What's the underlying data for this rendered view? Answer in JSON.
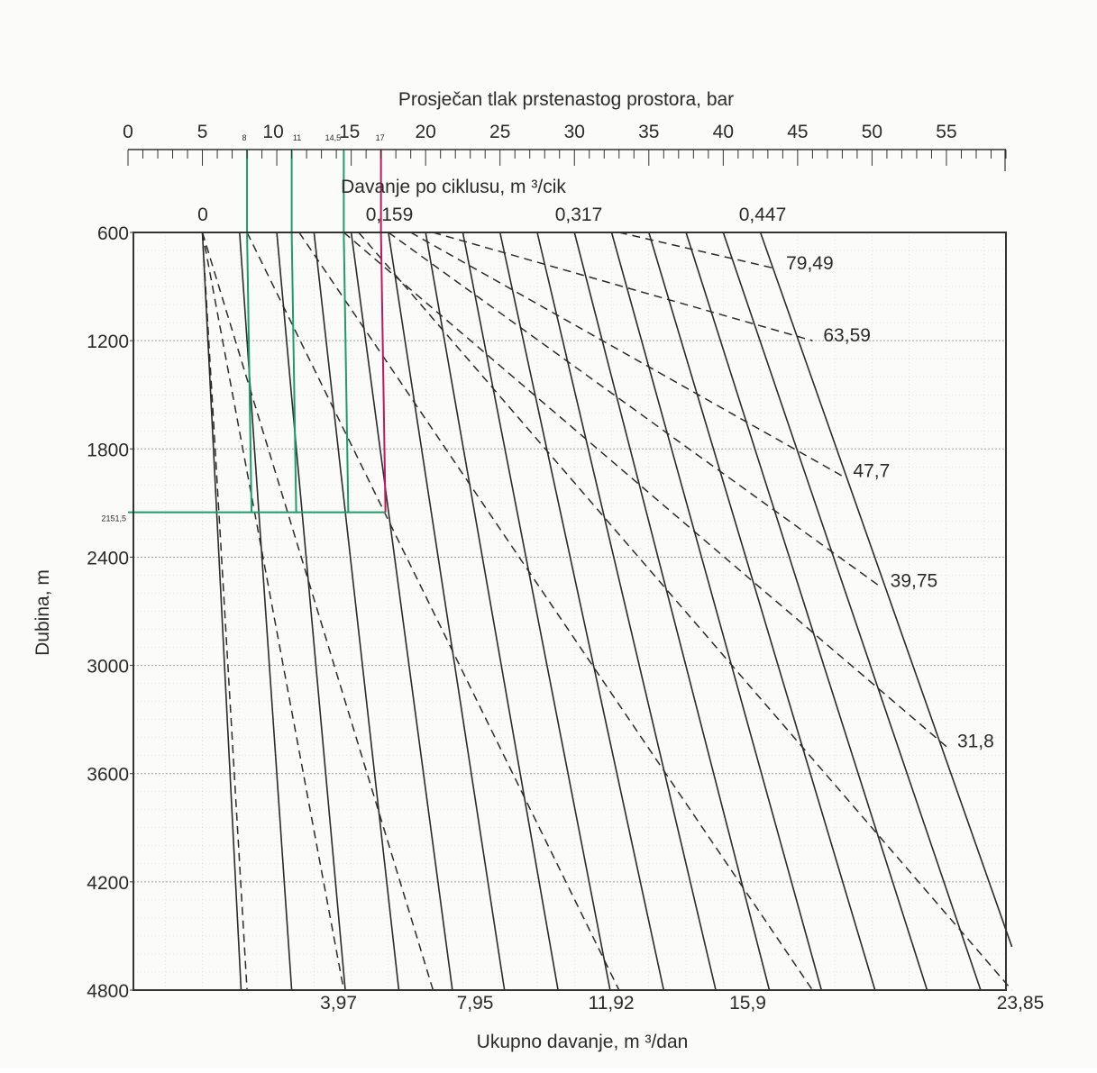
{
  "chart_data": {
    "type": "line",
    "title": "",
    "top_axis": {
      "label": "Prosječan tlak prstenastog prostora, bar",
      "range": [
        0,
        59
      ],
      "ticks": [
        "0",
        "5",
        "10",
        "15",
        "20",
        "25",
        "30",
        "35",
        "40",
        "45",
        "50",
        "55"
      ],
      "tick_values": [
        0,
        5,
        10,
        15,
        20,
        25,
        30,
        35,
        40,
        45,
        50,
        55
      ],
      "marked": [
        {
          "label": "8",
          "value": 8
        },
        {
          "label": "11",
          "value": 11
        },
        {
          "label": "14,5",
          "value": 14.5
        },
        {
          "label": "17",
          "value": 17
        }
      ]
    },
    "cycle_axis": {
      "label": "Davanje po ciklusu, m ³/cik",
      "ticks": [
        "0",
        "0,159",
        "0,317",
        "0,447"
      ],
      "tick_values": [
        0,
        0.159,
        0.317,
        0.447
      ]
    },
    "y_axis": {
      "label": "Dubina, m",
      "range": [
        600,
        4800
      ],
      "ticks": [
        "600",
        "1200",
        "1800",
        "2400",
        "3000",
        "3600",
        "4200",
        "4800"
      ],
      "tick_values": [
        600,
        1200,
        1800,
        2400,
        3000,
        3600,
        4200,
        4800
      ],
      "marked": {
        "label": "2151,5",
        "value": 2151.5
      }
    },
    "bottom_axis": {
      "label": "Ukupno davanje, m ³/dan",
      "range": [
        0,
        23.85
      ],
      "ticks": [
        "3,97",
        "7,95",
        "11,92",
        "15,9",
        "23,85"
      ],
      "tick_values": [
        3.97,
        7.95,
        11.92,
        15.9,
        23.85
      ]
    },
    "grid": true,
    "solid_lines": {
      "description_units": "pressure at top-axis scale (bar) at depth 600 m and depth 4800 m",
      "lines": [
        {
          "p600": 5,
          "p4800": 7.6
        },
        {
          "p600": 7.5,
          "p4800": 11
        },
        {
          "p600": 10,
          "p4800": 14.6
        },
        {
          "p600": 12.5,
          "p4800": 18.2
        },
        {
          "p600": 15,
          "p4800": 21.8
        },
        {
          "p600": 17.5,
          "p4800": 25.3
        },
        {
          "p600": 20,
          "p4800": 28.9
        },
        {
          "p600": 22.5,
          "p4800": 32.4
        },
        {
          "p600": 25,
          "p4800": 36
        },
        {
          "p600": 27.5,
          "p4800": 39.5
        },
        {
          "p600": 30,
          "p4800": 43.1
        },
        {
          "p600": 32.5,
          "p4800": 46.6
        },
        {
          "p600": 35,
          "p4800": 50.2
        },
        {
          "p600": 37.5,
          "p4800": 53.7
        },
        {
          "p600": 40,
          "p4800": 57.3
        },
        {
          "p600": 42.5,
          "p4800": 59.4,
          "depth_end": 4560
        }
      ]
    },
    "dashed_lines": {
      "description_units": "start pressure (bar) at 600 m, end pressure (bar) at end depth (m)",
      "lines": [
        {
          "label": "",
          "p600": 5,
          "p_end": 8,
          "depth_end": 4800
        },
        {
          "label": "",
          "p600": 5,
          "p_end": 14.5,
          "depth_end": 4800
        },
        {
          "label": "",
          "p600": 5,
          "p_end": 20.5,
          "depth_end": 4800
        },
        {
          "label": "",
          "p600": 8,
          "p_end": 33,
          "depth_end": 4800
        },
        {
          "label": "",
          "p600": 11.5,
          "p_end": 46,
          "depth_end": 4800
        },
        {
          "label": "31,8",
          "p600": 14.5,
          "p_end": 55,
          "depth_end": 3450
        },
        {
          "label": "",
          "p600": 15.5,
          "p_end": 59.4,
          "depth_end": 4800
        },
        {
          "label": "39,75",
          "p600": 17.5,
          "p_end": 50.5,
          "depth_end": 2560
        },
        {
          "label": "47,7",
          "p600": 19,
          "p_end": 48,
          "depth_end": 1950
        },
        {
          "label": "63,59",
          "p600": 20.5,
          "p_end": 46,
          "depth_end": 1200
        },
        {
          "label": "79,49",
          "p600": 33,
          "p_end": 43.5,
          "depth_end": 800
        }
      ]
    },
    "reference_lines": [
      {
        "label": "8",
        "value": 8,
        "color": "#1f9c6b"
      },
      {
        "label": "11",
        "value": 11,
        "color": "#1f9c6b"
      },
      {
        "label": "14,5",
        "value": 14.5,
        "color": "#1f9c6b"
      },
      {
        "label": "17",
        "value": 17,
        "color": "#c2185b"
      }
    ],
    "colors": {
      "axis": "#333333",
      "grid": "#9a9a9a",
      "curve": "#2b2b2b",
      "reference_green": "#1f9c6b",
      "reference_red": "#c2185b"
    }
  }
}
